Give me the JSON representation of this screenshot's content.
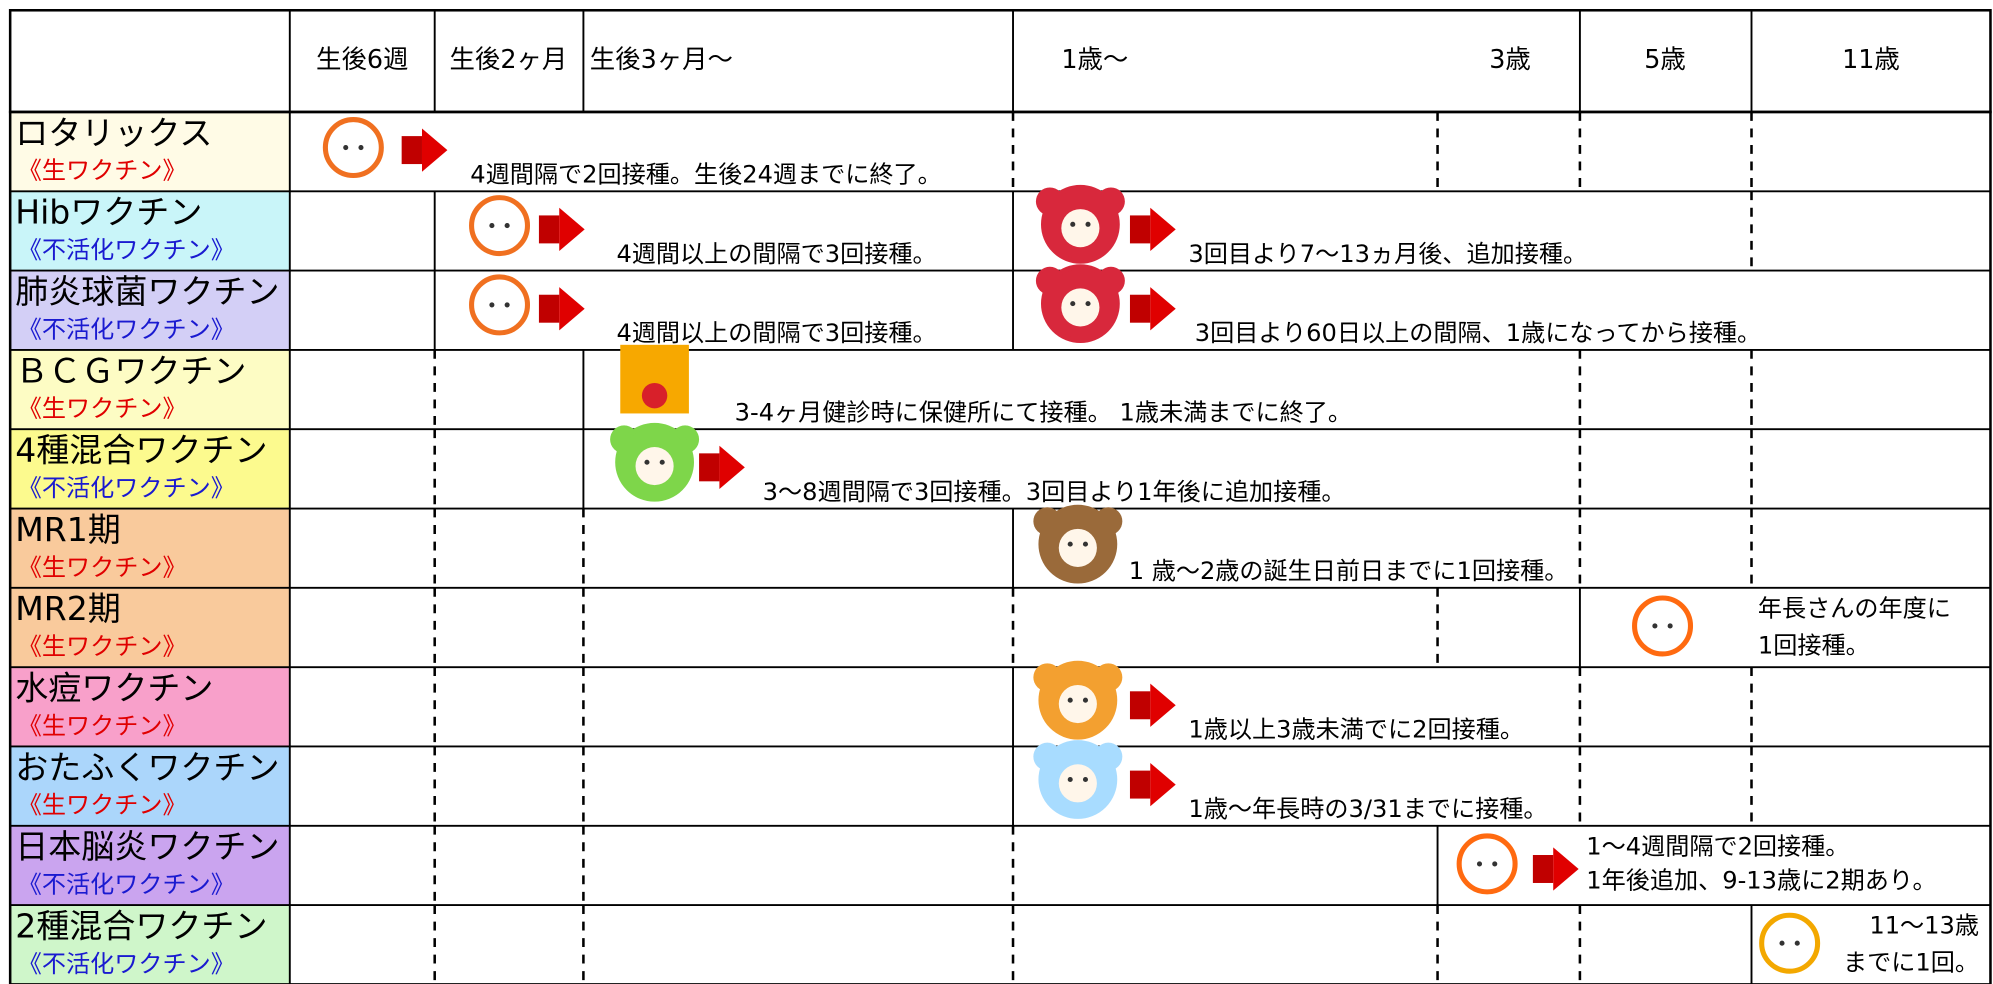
{
  "header": {
    "columns": [
      "生後6週",
      "生後2ヶ月",
      "生後3ヶ月〜",
      "1歳〜",
      "3歳",
      "5歳",
      "11歳"
    ]
  },
  "rows": [
    {
      "name": "ロタリックス",
      "kind": "《生ワクチン》",
      "kind_color": "#e00000",
      "color": "#fffbe6",
      "notes": [
        "4週間隔で2回接種。生後24週までに終了。"
      ]
    },
    {
      "name": "Hibワクチン",
      "kind": "《不活化ワクチン》",
      "kind_color": "#1a1ad0",
      "color": "#c9f5f9",
      "notes": [
        "4週間以上の間隔で3回接種。",
        "3回目より7〜13ヵ月後、追加接種。"
      ]
    },
    {
      "name": "肺炎球菌ワクチン",
      "kind": "《不活化ワクチン》",
      "kind_color": "#1a1ad0",
      "color": "#d3cff6",
      "notes": [
        "4週間以上の間隔で3回接種。",
        "3回目より60日以上の間隔、1歳になってから接種。"
      ]
    },
    {
      "name": "ＢＣＧワクチン",
      "kind": "《生ワクチン》",
      "kind_color": "#e00000",
      "color": "#fdfcc4",
      "notes": [
        "3-4ヶ月健診時に保健所にて接種。 1歳未満までに終了。"
      ]
    },
    {
      "name": "4種混合ワクチン",
      "kind": "《不活化ワクチン》",
      "kind_color": "#1a1ad0",
      "color": "#fcfa8e",
      "notes": [
        "3〜8週間隔で3回接種。3回目より1年後に追加接種。"
      ]
    },
    {
      "name": "MR1期",
      "kind": "《生ワクチン》",
      "kind_color": "#e00000",
      "color": "#f9ca9c",
      "notes": [
        "1 歳〜2歳の誕生日前日までに1回接種。"
      ]
    },
    {
      "name": "MR2期",
      "kind": "《生ワクチン》",
      "kind_color": "#e00000",
      "color": "#f9ca9c",
      "notes": [
        "年長さんの年度に",
        "1回接種。"
      ]
    },
    {
      "name": "水痘ワクチン",
      "kind": "《生ワクチン》",
      "kind_color": "#e00000",
      "color": "#f8a0ca",
      "notes": [
        "1歳以上3歳未満でに2回接種。"
      ]
    },
    {
      "name": "おたふくワクチン",
      "kind": "《生ワクチン》",
      "kind_color": "#e00000",
      "color": "#abd6fb",
      "notes": [
        "1歳〜年長時の3/31までに接種。"
      ]
    },
    {
      "name": "日本脳炎ワクチン",
      "kind": "《不活化ワクチン》",
      "kind_color": "#1a1ad0",
      "color": "#caa4ef",
      "notes": [
        "1〜4週間隔で2回接種。",
        "1年後追加、9-13歳に2期あり。"
      ]
    },
    {
      "name": "2種混合ワクチン",
      "kind": "《不活化ワクチン》",
      "kind_color": "#1a1ad0",
      "color": "#cff6ca",
      "notes": [
        "11〜13歳",
        "までに1回。"
      ]
    }
  ]
}
